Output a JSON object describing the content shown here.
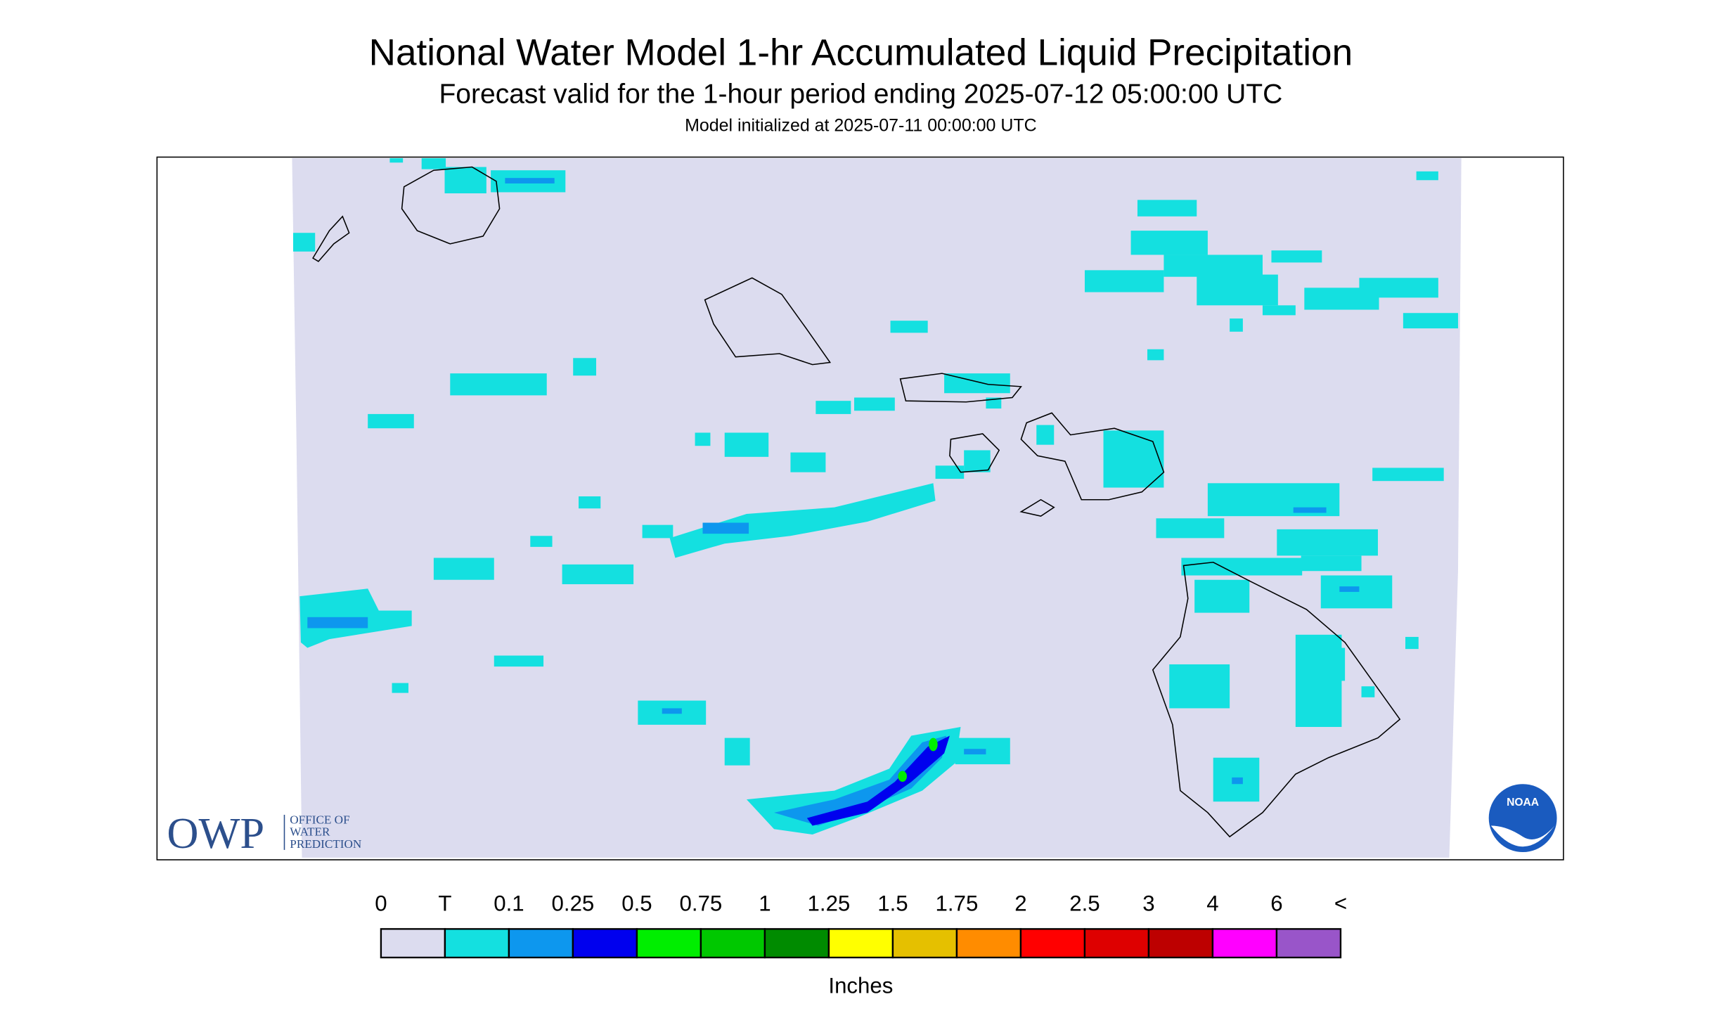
{
  "header": {
    "title": "National Water Model 1-hr Accumulated Liquid Precipitation",
    "subtitle": "Forecast valid for the 1-hour period ending 2025-07-12 05:00:00 UTC",
    "init": "Model initialized at 2025-07-11 00:00:00 UTC"
  },
  "legend": {
    "labels": [
      "0",
      "T",
      "0.1",
      "0.25",
      "0.5",
      "0.75",
      "1",
      "1.25",
      "1.5",
      "1.75",
      "2",
      "2.5",
      "3",
      "4",
      "6",
      "<"
    ],
    "colors": [
      "#dcdcef",
      "#14e0e0",
      "#0d97ee",
      "#0000ee",
      "#00ee00",
      "#00c800",
      "#008b00",
      "#ffff00",
      "#e5c000",
      "#ff8c00",
      "#ff0000",
      "#de0000",
      "#bd0000",
      "#ff00ff",
      "#9955c9"
    ],
    "unit": "Inches"
  },
  "logo": {
    "owp": "OWP",
    "lines": [
      "OFFICE OF",
      "WATER",
      "PREDICTION"
    ],
    "noaa": "NOAA"
  }
}
